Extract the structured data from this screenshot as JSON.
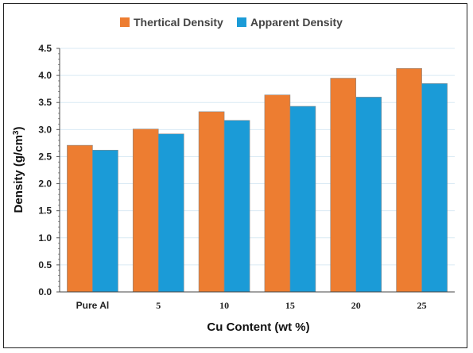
{
  "chart_data": {
    "type": "bar",
    "categories": [
      "Pure Al",
      "5",
      "10",
      "15",
      "20",
      "25"
    ],
    "series": [
      {
        "name": "Thertical Density",
        "color": "#ED7D31",
        "values": [
          2.71,
          3.01,
          3.33,
          3.64,
          3.95,
          4.13
        ]
      },
      {
        "name": "Apparent Density",
        "color": "#1B9BD7",
        "values": [
          2.62,
          2.92,
          3.17,
          3.43,
          3.6,
          3.85
        ]
      }
    ],
    "xlabel": "Cu Content  (wt %)",
    "ylabel_main": "Density (g/cm",
    "ylabel_sup": "3",
    "ylabel_end": ")",
    "ylim": [
      0,
      4.5
    ],
    "yticks": [
      "0.0",
      "0.5",
      "1.0",
      "1.5",
      "2.0",
      "2.5",
      "3.0",
      "3.5",
      "4.0",
      "4.5"
    ],
    "grid": true,
    "legend_position": "top-center"
  }
}
